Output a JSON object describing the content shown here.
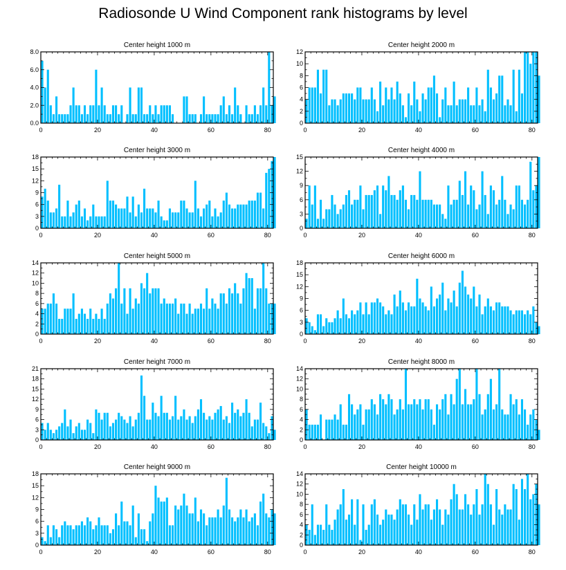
{
  "title": "Radiosonde U Wind Component rank histograms by level",
  "bar_color": "#00bfff",
  "chart_data": [
    {
      "type": "bar",
      "title": "Center height 1000 m",
      "xlim": [
        0,
        82
      ],
      "ylim": [
        0,
        8
      ],
      "xticks": [
        0,
        20,
        40,
        60,
        80
      ],
      "yticks": [
        0,
        2,
        4,
        6,
        8
      ],
      "ytick_labels": [
        "0.0",
        "2.0",
        "4.0",
        "6.0",
        "8.0"
      ],
      "values": [
        7,
        4,
        6,
        2,
        1,
        3,
        1,
        1,
        1,
        1,
        2,
        4,
        2,
        2,
        1,
        2,
        1,
        2,
        2,
        6,
        2,
        4,
        2,
        1,
        1,
        2,
        2,
        1,
        2,
        0,
        1,
        4,
        1,
        1,
        4,
        4,
        1,
        1,
        2,
        1,
        2,
        1,
        2,
        2,
        2,
        2,
        1,
        0,
        0,
        0,
        3,
        3,
        1,
        1,
        1,
        0,
        1,
        3,
        1,
        1,
        1,
        1,
        1,
        2,
        3,
        1,
        2,
        1,
        4,
        2,
        1,
        0,
        2,
        1,
        1,
        2,
        1,
        2,
        4,
        2,
        8,
        2,
        3
      ]
    },
    {
      "type": "bar",
      "title": "Center height 2000 m",
      "xlim": [
        0,
        82
      ],
      "ylim": [
        0,
        12
      ],
      "xticks": [
        0,
        20,
        40,
        60,
        80
      ],
      "yticks": [
        0,
        2,
        4,
        6,
        8,
        10,
        12
      ],
      "ytick_labels": [
        "0",
        "2",
        "4",
        "6",
        "8",
        "10",
        "12"
      ],
      "values": [
        4,
        6,
        6,
        6,
        9,
        5,
        9,
        9,
        3,
        4,
        4,
        3,
        4,
        5,
        5,
        5,
        5,
        4,
        6,
        6,
        4,
        4,
        4,
        6,
        4,
        2,
        7,
        3,
        6,
        4,
        6,
        4,
        7,
        5,
        3,
        1,
        5,
        3,
        7,
        4,
        2,
        5,
        4,
        6,
        6,
        8,
        5,
        1,
        4,
        6,
        3,
        3,
        7,
        3,
        4,
        4,
        4,
        6,
        3,
        3,
        6,
        3,
        4,
        2,
        9,
        6,
        4,
        5,
        8,
        8,
        3,
        4,
        3,
        9,
        2,
        9,
        5,
        12,
        12,
        10,
        12,
        12,
        8
      ]
    },
    {
      "type": "bar",
      "title": "Center height 3000 m",
      "xlim": [
        0,
        82
      ],
      "ylim": [
        0,
        18
      ],
      "xticks": [
        0,
        20,
        40,
        60,
        80
      ],
      "yticks": [
        0,
        3,
        6,
        9,
        12,
        15,
        18
      ],
      "ytick_labels": [
        "0",
        "3",
        "6",
        "9",
        "12",
        "15",
        "18"
      ],
      "values": [
        8,
        10,
        7,
        4,
        4,
        5,
        11,
        3,
        3,
        7,
        3,
        4,
        6,
        7,
        3,
        5,
        2,
        3,
        6,
        3,
        3,
        3,
        3,
        12,
        7,
        7,
        6,
        5,
        5,
        5,
        8,
        4,
        8,
        3,
        6,
        4,
        10,
        5,
        5,
        5,
        4,
        7,
        3,
        2,
        2,
        5,
        4,
        4,
        4,
        7,
        7,
        5,
        4,
        4,
        12,
        5,
        3,
        5,
        6,
        7,
        3,
        5,
        3,
        4,
        7,
        9,
        6,
        5,
        5,
        6,
        6,
        6,
        6,
        7,
        7,
        7,
        9,
        9,
        5,
        14,
        15,
        17,
        18
      ]
    },
    {
      "type": "bar",
      "title": "Center height 4000 m",
      "xlim": [
        0,
        82
      ],
      "ylim": [
        0,
        15
      ],
      "xticks": [
        0,
        20,
        40,
        60,
        80
      ],
      "yticks": [
        0,
        3,
        6,
        9,
        12,
        15
      ],
      "ytick_labels": [
        "0",
        "3",
        "6",
        "9",
        "12",
        "15"
      ],
      "values": [
        2,
        9,
        5,
        9,
        2,
        6,
        2,
        4,
        4,
        7,
        5,
        3,
        4,
        5,
        7,
        8,
        5,
        6,
        6,
        9,
        4,
        7,
        7,
        7,
        8,
        9,
        3,
        9,
        8,
        11,
        7,
        7,
        6,
        8,
        9,
        6,
        4,
        7,
        7,
        6,
        12,
        6,
        6,
        6,
        6,
        5,
        5,
        5,
        3,
        2,
        9,
        5,
        6,
        6,
        10,
        7,
        12,
        5,
        9,
        8,
        4,
        5,
        12,
        7,
        3,
        9,
        8,
        5,
        6,
        11,
        6,
        3,
        5,
        4,
        9,
        9,
        6,
        5,
        6,
        14,
        8,
        9,
        15
      ]
    },
    {
      "type": "bar",
      "title": "Center height 5000 m",
      "xlim": [
        0,
        82
      ],
      "ylim": [
        0,
        14
      ],
      "xticks": [
        0,
        20,
        40,
        60,
        80
      ],
      "yticks": [
        0,
        2,
        4,
        6,
        8,
        10,
        12,
        14
      ],
      "ytick_labels": [
        "0",
        "2",
        "4",
        "6",
        "8",
        "10",
        "12",
        "14"
      ],
      "values": [
        5,
        5,
        6,
        6,
        8,
        6,
        3,
        3,
        5,
        5,
        5,
        8,
        3,
        4,
        5,
        4,
        3,
        5,
        3,
        4,
        3,
        5,
        3,
        6,
        8,
        7,
        9,
        14,
        6,
        9,
        4,
        9,
        5,
        7,
        6,
        10,
        9,
        12,
        8,
        9,
        9,
        9,
        6,
        7,
        6,
        6,
        6,
        7,
        4,
        6,
        6,
        4,
        6,
        4,
        5,
        5,
        6,
        5,
        9,
        5,
        7,
        6,
        5,
        8,
        8,
        6,
        9,
        8,
        10,
        8,
        6,
        9,
        12,
        11,
        11,
        5,
        9,
        9,
        14,
        9,
        6,
        6,
        6
      ]
    },
    {
      "type": "bar",
      "title": "Center height 6000 m",
      "xlim": [
        0,
        82
      ],
      "ylim": [
        0,
        18
      ],
      "xticks": [
        0,
        20,
        40,
        60,
        80
      ],
      "yticks": [
        0,
        3,
        6,
        9,
        12,
        15,
        18
      ],
      "ytick_labels": [
        "0",
        "3",
        "6",
        "9",
        "12",
        "15",
        "18"
      ],
      "values": [
        4,
        3,
        2,
        1,
        5,
        5,
        2,
        4,
        3,
        3,
        4,
        6,
        4,
        9,
        5,
        4,
        6,
        5,
        6,
        8,
        5,
        8,
        5,
        8,
        8,
        9,
        8,
        7,
        5,
        6,
        5,
        10,
        7,
        11,
        8,
        6,
        8,
        7,
        7,
        14,
        9,
        8,
        7,
        6,
        12,
        7,
        9,
        10,
        13,
        6,
        9,
        8,
        11,
        7,
        13,
        16,
        12,
        10,
        9,
        12,
        7,
        10,
        5,
        7,
        9,
        7,
        6,
        8,
        8,
        7,
        7,
        7,
        6,
        5,
        6,
        6,
        6,
        5,
        6,
        5,
        7,
        3,
        2
      ]
    },
    {
      "type": "bar",
      "title": "Center height 7000 m",
      "xlim": [
        0,
        82
      ],
      "ylim": [
        0,
        21
      ],
      "xticks": [
        0,
        20,
        40,
        60,
        80
      ],
      "yticks": [
        0,
        3,
        6,
        9,
        12,
        15,
        18,
        21
      ],
      "ytick_labels": [
        "0",
        "3",
        "6",
        "9",
        "12",
        "15",
        "18",
        "21"
      ],
      "values": [
        5,
        3,
        5,
        3,
        2,
        3,
        4,
        5,
        9,
        4,
        6,
        2,
        4,
        5,
        3,
        3,
        6,
        5,
        2,
        9,
        8,
        6,
        8,
        8,
        4,
        5,
        6,
        8,
        7,
        6,
        5,
        7,
        4,
        6,
        8,
        19,
        13,
        6,
        6,
        11,
        8,
        7,
        13,
        8,
        8,
        6,
        7,
        13,
        6,
        7,
        9,
        6,
        7,
        5,
        7,
        9,
        12,
        8,
        6,
        7,
        6,
        8,
        9,
        10,
        6,
        7,
        5,
        11,
        8,
        9,
        7,
        8,
        12,
        8,
        4,
        6,
        6,
        11,
        5,
        4,
        2,
        7,
        3
      ]
    },
    {
      "type": "bar",
      "title": "Center height 8000 m",
      "xlim": [
        0,
        82
      ],
      "ylim": [
        0,
        14
      ],
      "xticks": [
        0,
        20,
        40,
        60,
        80
      ],
      "yticks": [
        0,
        2,
        4,
        6,
        8,
        10,
        12,
        14
      ],
      "ytick_labels": [
        "0",
        "2",
        "4",
        "6",
        "8",
        "10",
        "12",
        "14"
      ],
      "values": [
        6,
        3,
        3,
        3,
        3,
        5,
        0,
        4,
        4,
        4,
        5,
        4,
        7,
        3,
        3,
        9,
        7,
        5,
        6,
        7,
        3,
        6,
        6,
        8,
        7,
        5,
        9,
        8,
        7,
        9,
        8,
        5,
        6,
        8,
        6,
        14,
        7,
        7,
        8,
        7,
        8,
        6,
        8,
        8,
        6,
        3,
        7,
        6,
        8,
        9,
        5,
        9,
        7,
        12,
        14,
        7,
        10,
        7,
        7,
        8,
        14,
        9,
        5,
        6,
        9,
        12,
        6,
        7,
        14,
        6,
        5,
        5,
        9,
        7,
        8,
        5,
        8,
        6,
        3,
        5,
        6,
        4,
        2
      ]
    },
    {
      "type": "bar",
      "title": "Center height 9000 m",
      "xlim": [
        0,
        82
      ],
      "ylim": [
        0,
        18
      ],
      "xticks": [
        0,
        20,
        40,
        60,
        80
      ],
      "yticks": [
        0,
        3,
        6,
        9,
        12,
        15,
        18
      ],
      "ytick_labels": [
        "0",
        "3",
        "6",
        "9",
        "12",
        "15",
        "18"
      ],
      "values": [
        2,
        1,
        5,
        2,
        5,
        4,
        2,
        5,
        6,
        5,
        5,
        4,
        5,
        5,
        6,
        5,
        7,
        6,
        4,
        5,
        7,
        5,
        5,
        5,
        3,
        4,
        8,
        5,
        11,
        6,
        6,
        5,
        10,
        2,
        8,
        4,
        4,
        1,
        6,
        8,
        15,
        12,
        11,
        11,
        12,
        5,
        5,
        10,
        9,
        10,
        13,
        10,
        8,
        8,
        12,
        6,
        9,
        8,
        5,
        7,
        7,
        7,
        9,
        7,
        10,
        17,
        9,
        7,
        6,
        7,
        9,
        7,
        9,
        6,
        7,
        8,
        5,
        11,
        13,
        8,
        7,
        9,
        8
      ]
    },
    {
      "type": "bar",
      "title": "Center height 10000 m",
      "xlim": [
        0,
        82
      ],
      "ylim": [
        0,
        14
      ],
      "xticks": [
        0,
        20,
        40,
        60,
        80
      ],
      "yticks": [
        0,
        2,
        4,
        6,
        8,
        10,
        12,
        14
      ],
      "ytick_labels": [
        "0",
        "2",
        "4",
        "6",
        "8",
        "10",
        "12",
        "14"
      ],
      "values": [
        4,
        3,
        8,
        2,
        4,
        4,
        3,
        8,
        4,
        3,
        5,
        7,
        8,
        11,
        5,
        6,
        9,
        4,
        9,
        1,
        8,
        3,
        4,
        8,
        9,
        6,
        4,
        5,
        7,
        6,
        6,
        5,
        7,
        9,
        8,
        8,
        6,
        4,
        8,
        5,
        10,
        7,
        8,
        8,
        5,
        7,
        9,
        7,
        4,
        7,
        6,
        9,
        12,
        10,
        7,
        7,
        10,
        8,
        6,
        8,
        11,
        6,
        8,
        14,
        12,
        8,
        4,
        11,
        7,
        6,
        8,
        7,
        7,
        12,
        11,
        5,
        13,
        11,
        14,
        9,
        10,
        12,
        8
      ]
    }
  ]
}
